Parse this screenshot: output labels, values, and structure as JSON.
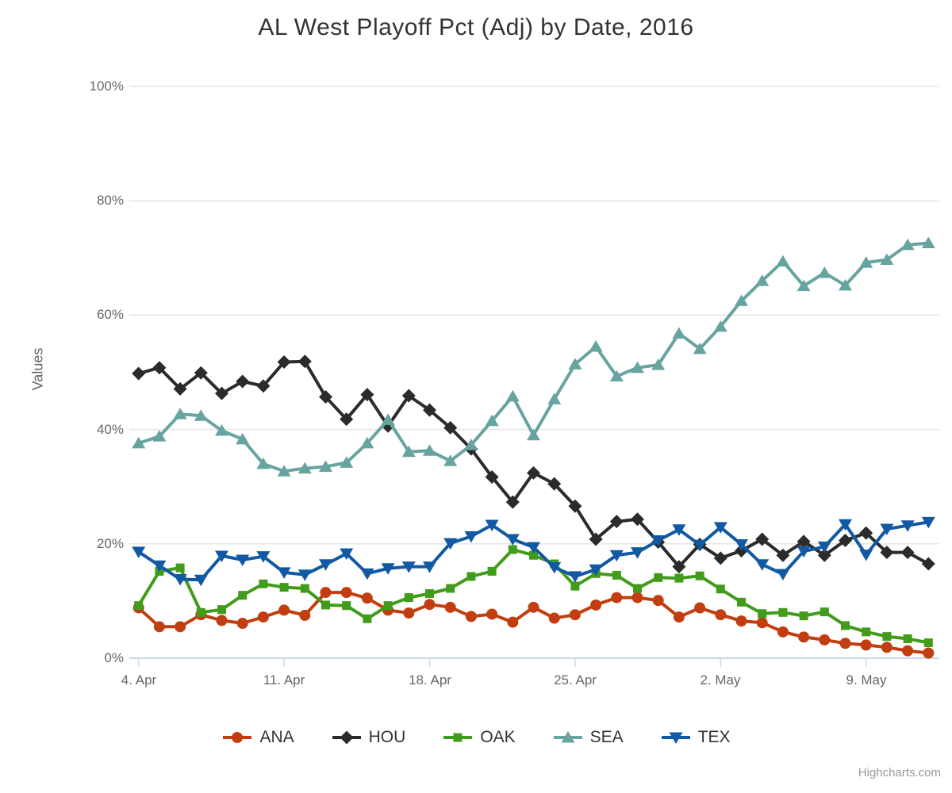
{
  "title": "AL West Playoff Pct (Adj) by Date, 2016",
  "y_axis": {
    "title": "Values",
    "tick_labels": [
      "0%",
      "20%",
      "40%",
      "60%",
      "80%",
      "100%"
    ]
  },
  "x_axis": {
    "tick_labels": [
      "4. Apr",
      "11. Apr",
      "18. Apr",
      "25. Apr",
      "2. May",
      "9. May"
    ]
  },
  "credit": "Highcharts.com",
  "colors": {
    "grid": "#e6e6e6",
    "axis_line": "#ccd6eb",
    "label_text": "#666666",
    "title_text": "#333333",
    "legend_text": "#333333",
    "credit_text": "#999999"
  },
  "chart_data": {
    "type": "line",
    "title": "AL West Playoff Pct (Adj) by Date, 2016",
    "ylabel": "Values",
    "ylim": [
      0,
      100
    ],
    "y_ticks": [
      0,
      20,
      40,
      60,
      80,
      100
    ],
    "grid": true,
    "legend_position": "bottom",
    "x": [
      "4. Apr",
      "5. Apr",
      "6. Apr",
      "7. Apr",
      "8. Apr",
      "9. Apr",
      "10. Apr",
      "11. Apr",
      "12. Apr",
      "13. Apr",
      "14. Apr",
      "15. Apr",
      "16. Apr",
      "17. Apr",
      "18. Apr",
      "19. Apr",
      "20. Apr",
      "21. Apr",
      "22. Apr",
      "23. Apr",
      "24. Apr",
      "25. Apr",
      "26. Apr",
      "27. Apr",
      "28. Apr",
      "29. Apr",
      "30. Apr",
      "1. May",
      "2. May",
      "3. May",
      "4. May",
      "5. May",
      "6. May",
      "7. May",
      "8. May",
      "9. May",
      "10. May",
      "11. May",
      "12. May"
    ],
    "x_tick_indices": [
      0,
      7,
      14,
      21,
      28,
      35
    ],
    "series": [
      {
        "name": "ANA",
        "color": "#c23e10",
        "marker": "circle",
        "values": [
          8.8,
          5.5,
          5.5,
          7.6,
          6.6,
          6.1,
          7.2,
          8.4,
          7.5,
          11.5,
          11.5,
          10.5,
          8.4,
          7.9,
          9.4,
          8.9,
          7.3,
          7.7,
          6.3,
          8.9,
          7.0,
          7.6,
          9.3,
          10.6,
          10.6,
          10.1,
          7.2,
          8.8,
          7.6,
          6.5,
          6.2,
          4.6,
          3.7,
          3.2,
          2.6,
          2.3,
          1.9,
          1.3,
          0.9
        ]
      },
      {
        "name": "HOU",
        "color": "#2b2b2b",
        "marker": "diamond",
        "values": [
          49.8,
          50.8,
          47.1,
          49.9,
          46.3,
          48.4,
          47.6,
          51.8,
          51.9,
          45.7,
          41.8,
          46.1,
          40.6,
          45.9,
          43.4,
          40.3,
          36.6,
          31.7,
          27.3,
          32.4,
          30.5,
          26.6,
          20.8,
          23.9,
          24.3,
          20.3,
          16.0,
          19.9,
          17.5,
          18.8,
          20.8,
          18.0,
          20.4,
          18.0,
          20.6,
          21.9,
          18.5,
          18.5,
          16.5
        ]
      },
      {
        "name": "OAK",
        "color": "#429c1c",
        "marker": "square",
        "values": [
          9.2,
          15.2,
          15.8,
          8.0,
          8.5,
          11.0,
          13.0,
          12.4,
          12.2,
          9.3,
          9.2,
          6.9,
          9.2,
          10.6,
          11.3,
          12.2,
          14.3,
          15.2,
          19.0,
          18.0,
          16.5,
          12.6,
          14.8,
          14.5,
          12.2,
          14.1,
          14.0,
          14.4,
          12.1,
          9.8,
          7.8,
          8.0,
          7.4,
          8.1,
          5.7,
          4.6,
          3.8,
          3.4,
          2.7
        ]
      },
      {
        "name": "SEA",
        "color": "#68a49f",
        "marker": "triangle-up",
        "values": [
          37.6,
          38.8,
          42.7,
          42.4,
          39.8,
          38.3,
          34.0,
          32.7,
          33.2,
          33.5,
          34.2,
          37.6,
          41.7,
          36.1,
          36.3,
          34.5,
          37.3,
          41.5,
          45.8,
          39.0,
          45.3,
          51.4,
          54.5,
          49.3,
          50.8,
          51.3,
          56.8,
          54.1,
          58.0,
          62.5,
          66.0,
          69.4,
          65.1,
          67.4,
          65.2,
          69.2,
          69.7,
          72.3,
          72.6
        ]
      },
      {
        "name": "TEX",
        "color": "#1159a3",
        "marker": "triangle-down",
        "values": [
          18.6,
          16.2,
          13.8,
          13.7,
          17.9,
          17.2,
          17.8,
          15.0,
          14.6,
          16.4,
          18.3,
          14.8,
          15.7,
          16.0,
          16.0,
          20.1,
          21.3,
          23.3,
          20.8,
          19.4,
          15.9,
          14.3,
          15.5,
          18.0,
          18.5,
          20.6,
          22.5,
          19.8,
          22.9,
          19.9,
          16.4,
          14.7,
          18.7,
          19.5,
          23.4,
          18.1,
          22.6,
          23.2,
          23.8
        ]
      }
    ]
  }
}
